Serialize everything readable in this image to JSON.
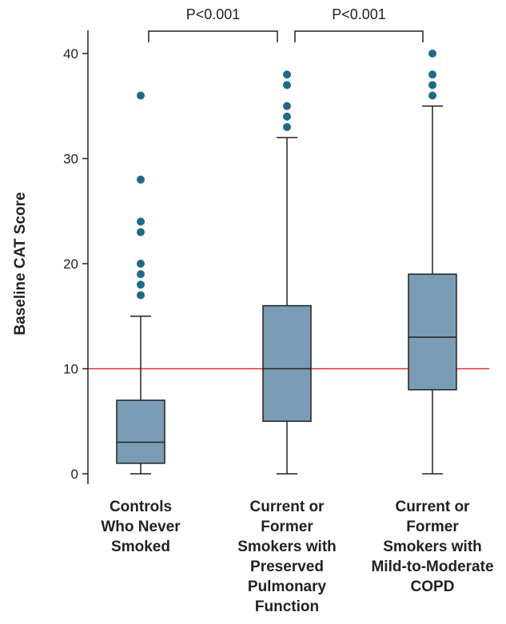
{
  "chart_data": {
    "type": "box",
    "ylabel": "Baseline CAT Score",
    "ylim": [
      0,
      42
    ],
    "yticks": [
      "0",
      "10",
      "20",
      "30",
      "40"
    ],
    "reference_line": {
      "y": 10,
      "color": "#d9332f"
    },
    "colors": {
      "box_fill": "#7a9db5",
      "outlier": "#1f6b86",
      "line": "#222222"
    },
    "categories": [
      {
        "lines": [
          "Controls",
          "Who Never",
          "Smoked"
        ]
      },
      {
        "lines": [
          "Current or",
          "Former",
          "Smokers with",
          "Preserved",
          "Pulmonary",
          "Function"
        ]
      },
      {
        "lines": [
          "Current or",
          "Former",
          "Smokers with",
          "Mild-to-Moderate",
          "COPD"
        ]
      }
    ],
    "boxes": [
      {
        "whisker_low": 0,
        "q1": 1,
        "median": 3,
        "q3": 7,
        "whisker_high": 15,
        "outliers": [
          17,
          18,
          19,
          20,
          23,
          24,
          28,
          36
        ]
      },
      {
        "whisker_low": 0,
        "q1": 5,
        "median": 10,
        "q3": 16,
        "whisker_high": 32,
        "outliers": [
          33,
          34,
          35,
          37,
          38
        ]
      },
      {
        "whisker_low": 0,
        "q1": 8,
        "median": 13,
        "q3": 19,
        "whisker_high": 35,
        "outliers": [
          36,
          37,
          38,
          40
        ]
      }
    ],
    "comparisons": [
      {
        "from": 0,
        "to": 1,
        "label": "P<0.001"
      },
      {
        "from": 1,
        "to": 2,
        "label": "P<0.001"
      }
    ]
  }
}
